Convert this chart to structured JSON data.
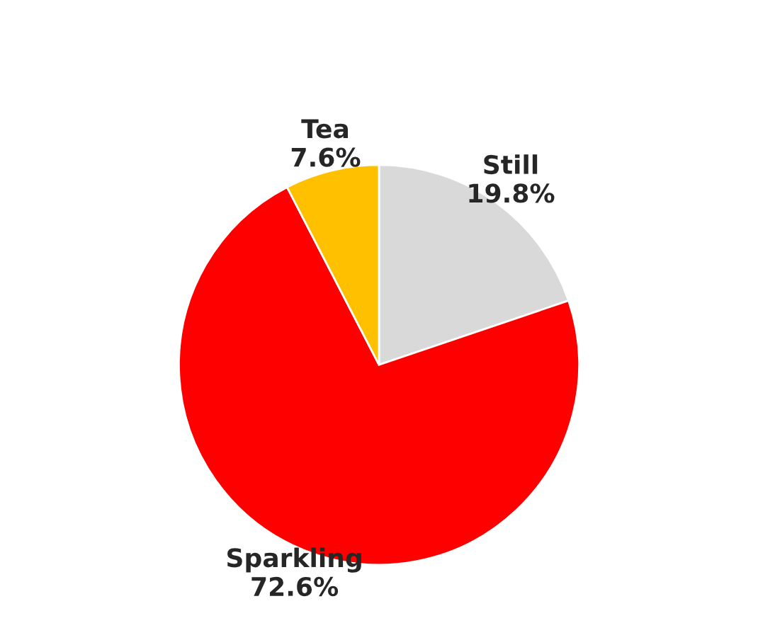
{
  "chart_data": {
    "type": "pie",
    "categories": [
      "Still",
      "Sparkling",
      "Tea"
    ],
    "values": [
      19.8,
      72.6,
      7.6
    ],
    "value_labels": [
      "19.8%",
      "72.6%",
      "7.6%"
    ],
    "colors": [
      "#d9d9d9",
      "#ff0000",
      "#ffc000"
    ]
  }
}
